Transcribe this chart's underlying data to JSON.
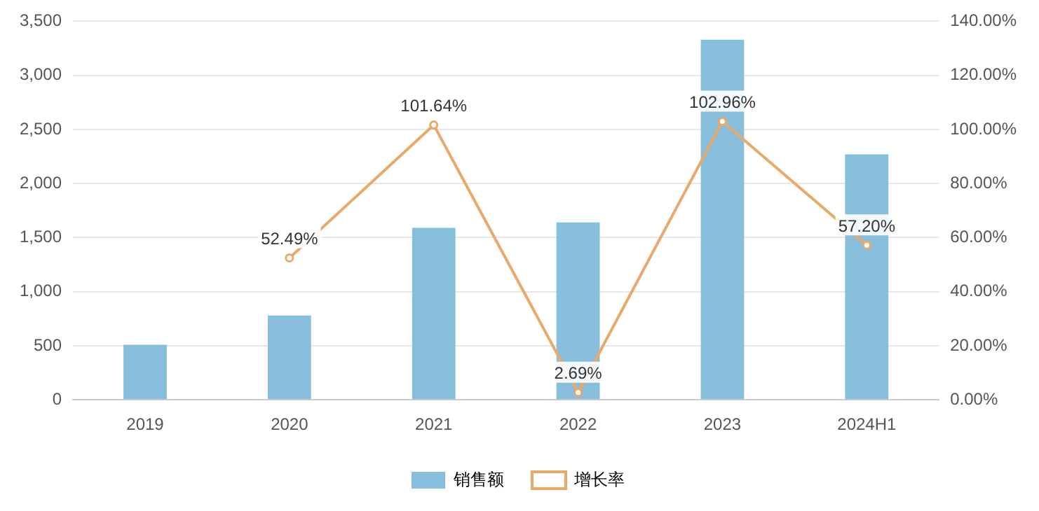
{
  "chart_data": {
    "type": "bar",
    "categories": [
      "2019",
      "2020",
      "2021",
      "2022",
      "2023",
      "2024H1"
    ],
    "series": [
      {
        "name": "销售额",
        "color": "#87bedc",
        "values": [
          510,
          780,
          1590,
          1640,
          3330,
          2270
        ]
      },
      {
        "name": "增长率",
        "type": "line",
        "axis": "y2",
        "color": "#e8a96b",
        "values": [
          null,
          52.49,
          101.64,
          2.69,
          102.96,
          57.2
        ],
        "value_labels": [
          null,
          "52.49%",
          "101.64%",
          "2.69%",
          "102.96%",
          "57.20%"
        ]
      }
    ],
    "ylim": [
      0,
      3500
    ],
    "yticks": [
      {
        "value": 0,
        "label": "0"
      },
      {
        "value": 500,
        "label": "500"
      },
      {
        "value": 1000,
        "label": "1,000"
      },
      {
        "value": 1500,
        "label": "1,500"
      },
      {
        "value": 2000,
        "label": "2,000"
      },
      {
        "value": 2500,
        "label": "2,500"
      },
      {
        "value": 3000,
        "label": "3,000"
      },
      {
        "value": 3500,
        "label": "3,500"
      }
    ],
    "y2lim": [
      0,
      140
    ],
    "y2ticks": [
      {
        "value": 0,
        "label": "0.00%"
      },
      {
        "value": 20,
        "label": "20.00%"
      },
      {
        "value": 40,
        "label": "40.00%"
      },
      {
        "value": 60,
        "label": "60.00%"
      },
      {
        "value": 80,
        "label": "80.00%"
      },
      {
        "value": 100,
        "label": "100.00%"
      },
      {
        "value": 120,
        "label": "120.00%"
      },
      {
        "value": 140,
        "label": "140.00%"
      }
    ],
    "grid": "y",
    "legend": "bottom",
    "marker": "circle",
    "line_style": "solid"
  }
}
